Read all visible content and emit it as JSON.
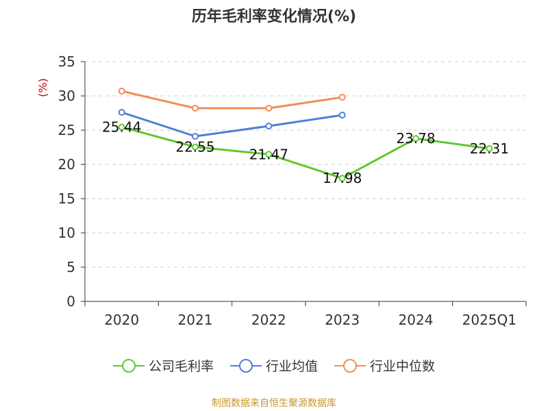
{
  "title": "历年毛利率变化情况(%)",
  "source": "制图数据来自恒生聚源数据库",
  "colors": {
    "gross_margin": "#5fc72c",
    "industry_avg": "#4f7fd8",
    "industry_median": "#f48c58",
    "ylabel": "#cc0000",
    "grid": "#cccccc",
    "axis": "#333333",
    "source": "#c8962a"
  },
  "chart_data": {
    "type": "line",
    "title": "历年毛利率变化情况(%)",
    "xlabel": "",
    "ylabel": "(%)",
    "categories": [
      "2020",
      "2021",
      "2022",
      "2023",
      "2024",
      "2025Q1"
    ],
    "ylim": [
      0,
      35
    ],
    "yticks": [
      0,
      5,
      10,
      15,
      20,
      25,
      30,
      35
    ],
    "grid": true,
    "legend_position": "bottom",
    "series": [
      {
        "name": "公司毛利率",
        "values": [
          25.44,
          22.55,
          21.47,
          17.98,
          23.78,
          22.31
        ],
        "labels": [
          "25.44",
          "22.55",
          "21.47",
          "17.98",
          "23.78",
          "22.31"
        ],
        "show_labels": true
      },
      {
        "name": "行业均值",
        "values": [
          27.6,
          24.1,
          25.6,
          27.2,
          null,
          null
        ],
        "show_labels": false
      },
      {
        "name": "行业中位数",
        "values": [
          30.7,
          28.2,
          28.2,
          29.8,
          null,
          null
        ],
        "show_labels": false
      }
    ]
  }
}
